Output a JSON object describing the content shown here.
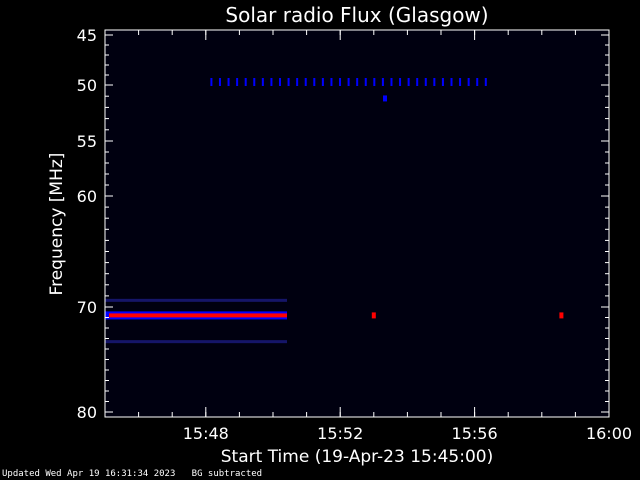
{
  "chart_data": {
    "type": "heatmap",
    "title": "Solar radio Flux (Glasgow)",
    "xlabel": "Start Time (19-Apr-23 15:45:00)",
    "ylabel": "Frequency [MHz]",
    "x_range": [
      "15:45:00",
      "16:00:00"
    ],
    "x_ticks": [
      "15:48",
      "15:52",
      "15:56",
      "16:00"
    ],
    "y_range": [
      45,
      80
    ],
    "y_ticks": [
      "45",
      "50",
      "55",
      "60",
      "70",
      "80"
    ],
    "y_tick_values": [
      45,
      50,
      55,
      60,
      70,
      80
    ],
    "y_scale": "nonlinear (log-like)",
    "grid": false,
    "background_color": "#000010",
    "colors": {
      "weak": "#0000ff",
      "strong": "#ff0000",
      "faint_band": "#1a1a80"
    },
    "features": [
      {
        "name": "band-50",
        "freq": 49.7,
        "kind": "dash-series",
        "start": "15:48:10",
        "end": "15:56:20",
        "intensity": "weak"
      },
      {
        "name": "dot-51",
        "freq": 51.2,
        "kind": "dot",
        "at": "15:53:20",
        "intensity": "weak"
      },
      {
        "name": "band-70",
        "freq": 70.8,
        "kind": "band",
        "start": "15:45:00",
        "end": "15:50:25",
        "intensity": "strong"
      },
      {
        "name": "faint-73",
        "freq": 73.3,
        "kind": "faint",
        "start": "15:45:00",
        "end": "15:50:25",
        "intensity": "faint"
      },
      {
        "name": "faint-69",
        "freq": 69.4,
        "kind": "faint",
        "start": "15:45:00",
        "end": "15:50:25",
        "intensity": "faint"
      },
      {
        "name": "blip-70-a",
        "freq": 70.8,
        "kind": "dot",
        "at": "15:53:00",
        "intensity": "strong"
      },
      {
        "name": "blip-70-b",
        "freq": 70.8,
        "kind": "dot",
        "at": "15:58:35",
        "intensity": "strong"
      }
    ]
  },
  "footer": {
    "updated": "Updated Wed Apr 19 16:31:34 2023",
    "note": "BG subtracted"
  }
}
